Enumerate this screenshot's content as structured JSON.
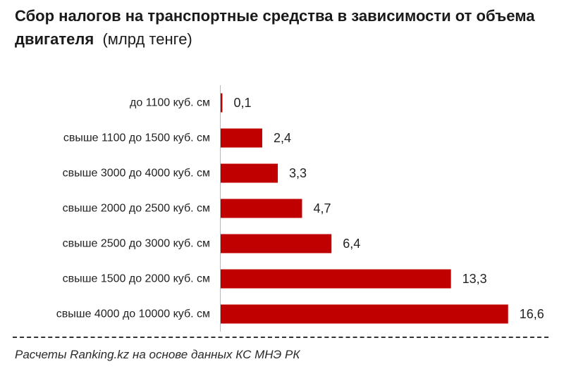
{
  "chart_data": {
    "type": "bar",
    "orientation": "horizontal",
    "title": "Сбор налогов на транспортные средства в зависимости от объема двигателя",
    "unit": "(млрд тенге)",
    "categories": [
      "до 1100 куб. см",
      "свыше 1100 до 1500 куб. см",
      "свыше 3000 до 4000 куб. см",
      "свыше 2000 до 2500 куб. см",
      "свыше 2500 до 3000 куб. см",
      "свыше 1500 до 2000 куб. см",
      "свыше 4000 до 10000 куб. см"
    ],
    "values": [
      0.1,
      2.4,
      3.3,
      4.7,
      6.4,
      13.3,
      16.6
    ],
    "value_labels": [
      "0,1",
      "2,4",
      "3,3",
      "4,7",
      "6,4",
      "13,3",
      "16,6"
    ],
    "xlim": [
      0,
      17.1
    ],
    "bar_color": "#c00000",
    "grid": false,
    "legend": "none"
  },
  "source": "Расчеты Ranking.kz на основе данных КС МНЭ РК"
}
